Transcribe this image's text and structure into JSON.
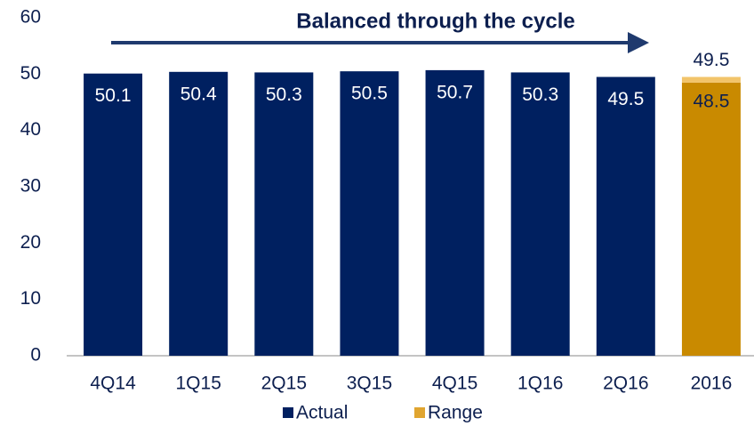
{
  "chart_data": {
    "type": "bar",
    "title": "Balanced through the cycle",
    "categories": [
      "4Q14",
      "1Q15",
      "2Q15",
      "3Q15",
      "4Q15",
      "1Q16",
      "2Q16",
      "2016"
    ],
    "series": [
      {
        "name": "Actual",
        "color": "#002060",
        "values": [
          50.1,
          50.4,
          50.3,
          50.5,
          50.7,
          50.3,
          49.5,
          null
        ]
      },
      {
        "name": "Range",
        "color": "#c98a00",
        "high_color": "#f2c46a",
        "low": [
          null,
          null,
          null,
          null,
          null,
          null,
          null,
          48.5
        ],
        "high": [
          null,
          null,
          null,
          null,
          null,
          null,
          null,
          49.5
        ]
      }
    ],
    "ylim": [
      0,
      60
    ],
    "yticks": [
      0,
      10,
      20,
      30,
      40,
      50,
      60
    ],
    "grid": false
  }
}
